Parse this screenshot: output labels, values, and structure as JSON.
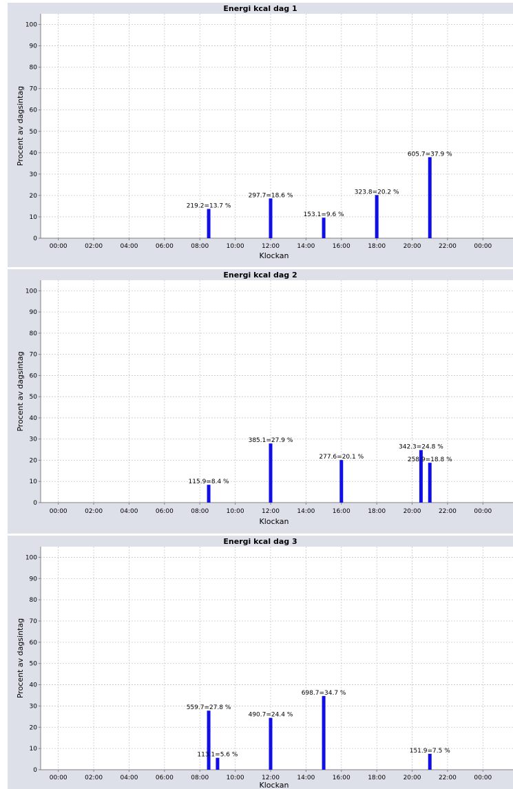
{
  "chart_data": [
    {
      "type": "bar",
      "title": "Energi kcal  dag 1",
      "xlabel": "Klockan",
      "ylabel": "Procent av dagsintag",
      "ylim": [
        0,
        105
      ],
      "yticks": [
        "0",
        "10",
        "20",
        "30",
        "40",
        "50",
        "60",
        "70",
        "80",
        "90",
        "100"
      ],
      "xticks": [
        "00:00",
        "02:00",
        "04:00",
        "06:00",
        "08:00",
        "10:00",
        "12:00",
        "14:00",
        "16:00",
        "18:00",
        "20:00",
        "22:00",
        "00:00"
      ],
      "grid": true,
      "x_unit": "hours",
      "xlim": [
        -1,
        25.7
      ],
      "bars": [
        {
          "x": 8.5,
          "value": 13.7,
          "label": "219.2=13.7 %"
        },
        {
          "x": 12.0,
          "value": 18.6,
          "label": "297.7=18.6 %"
        },
        {
          "x": 15.0,
          "value": 9.6,
          "label": "153.1=9.6 %"
        },
        {
          "x": 18.0,
          "value": 20.2,
          "label": "323.8=20.2 %"
        },
        {
          "x": 21.0,
          "value": 37.9,
          "label": "605.7=37.9 %"
        }
      ]
    },
    {
      "type": "bar",
      "title": "Energi kcal  dag 2",
      "xlabel": "Klockan",
      "ylabel": "Procent av dagsintag",
      "ylim": [
        0,
        105
      ],
      "yticks": [
        "0",
        "10",
        "20",
        "30",
        "40",
        "50",
        "60",
        "70",
        "80",
        "90",
        "100"
      ],
      "xticks": [
        "00:00",
        "02:00",
        "04:00",
        "06:00",
        "08:00",
        "10:00",
        "12:00",
        "14:00",
        "16:00",
        "18:00",
        "20:00",
        "22:00",
        "00:00"
      ],
      "grid": true,
      "x_unit": "hours",
      "xlim": [
        -1,
        25.7
      ],
      "bars": [
        {
          "x": 8.5,
          "value": 8.4,
          "label": "115.9=8.4 %"
        },
        {
          "x": 12.0,
          "value": 27.9,
          "label": "385.1=27.9 %"
        },
        {
          "x": 16.0,
          "value": 20.1,
          "label": "277.6=20.1 %"
        },
        {
          "x": 20.5,
          "value": 24.8,
          "label": "342.3=24.8 %"
        },
        {
          "x": 21.0,
          "value": 18.8,
          "label": "258.9=18.8 %"
        }
      ]
    },
    {
      "type": "bar",
      "title": "Energi kcal  dag 3",
      "xlabel": "Klockan",
      "ylabel": "Procent av dagsintag",
      "ylim": [
        0,
        105
      ],
      "yticks": [
        "0",
        "10",
        "20",
        "30",
        "40",
        "50",
        "60",
        "70",
        "80",
        "90",
        "100"
      ],
      "xticks": [
        "00:00",
        "02:00",
        "04:00",
        "06:00",
        "08:00",
        "10:00",
        "12:00",
        "14:00",
        "16:00",
        "18:00",
        "20:00",
        "22:00",
        "00:00"
      ],
      "grid": true,
      "x_unit": "hours",
      "xlim": [
        -1,
        25.7
      ],
      "bars": [
        {
          "x": 8.5,
          "value": 27.8,
          "label": "559.7=27.8 %"
        },
        {
          "x": 9.0,
          "value": 5.6,
          "label": "113.1=5.6 %"
        },
        {
          "x": 12.0,
          "value": 24.4,
          "label": "490.7=24.4 %"
        },
        {
          "x": 15.0,
          "value": 34.7,
          "label": "698.7=34.7 %"
        },
        {
          "x": 21.0,
          "value": 7.5,
          "label": "151.9=7.5 %"
        }
      ]
    }
  ],
  "colors": {
    "bar": "#1010e6",
    "panel_background": "#dde0e8",
    "plot_background": "#ffffff"
  }
}
